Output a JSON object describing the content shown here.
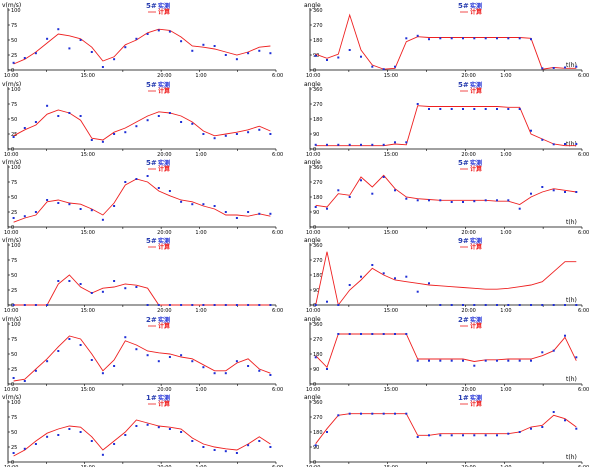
{
  "legend": {
    "measured": "实测",
    "computed": "计算"
  },
  "colors": {
    "measured": "#1f2fd6",
    "computed": "#ee2020",
    "axis": "#000000"
  },
  "chart_data": [
    {
      "type": "line",
      "title": "5#",
      "ylabel": "v(m/s)",
      "xlabel": "",
      "ylim": [
        0,
        100
      ],
      "yticks": [
        0,
        25,
        50,
        75,
        100
      ],
      "x_tick_labels": [
        "10:00",
        "",
        "15:00",
        "",
        "20:00",
        "1:00",
        "",
        "6:00"
      ],
      "series": [
        {
          "name": "计算",
          "values": [
            10,
            18,
            30,
            45,
            60,
            57,
            52,
            38,
            15,
            22,
            42,
            50,
            62,
            68,
            66,
            55,
            40,
            38,
            35,
            30,
            25,
            30,
            38,
            40
          ]
        },
        {
          "name": "实测",
          "values": [
            12,
            20,
            28,
            52,
            68,
            36,
            50,
            30,
            5,
            18,
            38,
            52,
            60,
            66,
            64,
            48,
            32,
            42,
            40,
            25,
            18,
            28,
            32,
            28
          ]
        }
      ]
    },
    {
      "type": "line",
      "title": "5#",
      "ylabel": "angle",
      "xlabel": "t(h)",
      "ylim": [
        0,
        360
      ],
      "yticks": [
        0,
        90,
        180,
        270,
        360
      ],
      "x_tick_labels": [
        "10:00",
        "",
        "15:00",
        "",
        "20:00",
        "1:00",
        "",
        "6:00"
      ],
      "series": [
        {
          "name": "计算",
          "values": [
            95,
            70,
            95,
            330,
            120,
            30,
            5,
            10,
            170,
            200,
            195,
            195,
            195,
            195,
            195,
            195,
            195,
            195,
            195,
            190,
            5,
            15,
            10,
            10
          ]
        },
        {
          "name": "实测",
          "values": [
            85,
            60,
            75,
            120,
            80,
            20,
            5,
            20,
            190,
            205,
            185,
            190,
            190,
            190,
            190,
            190,
            190,
            190,
            190,
            185,
            10,
            12,
            15,
            20
          ]
        }
      ]
    },
    {
      "type": "line",
      "title": "5#",
      "ylabel": "v(m/s)",
      "xlabel": "",
      "ylim": [
        0,
        100
      ],
      "yticks": [
        0,
        25,
        50,
        75,
        100
      ],
      "x_tick_labels": [
        "10:00",
        "",
        "15:00",
        "",
        "20:00",
        "1:00",
        "",
        "6:00"
      ],
      "series": [
        {
          "name": "计算",
          "values": [
            22,
            32,
            40,
            58,
            65,
            60,
            48,
            18,
            15,
            28,
            35,
            45,
            55,
            62,
            60,
            55,
            45,
            30,
            22,
            25,
            28,
            32,
            38,
            30
          ]
        },
        {
          "name": "实测",
          "values": [
            20,
            35,
            45,
            72,
            55,
            60,
            55,
            15,
            12,
            25,
            28,
            38,
            48,
            55,
            60,
            45,
            42,
            25,
            18,
            22,
            25,
            28,
            32,
            25
          ]
        }
      ]
    },
    {
      "type": "line",
      "title": "5#",
      "ylabel": "angle",
      "xlabel": "t(h)",
      "ylim": [
        0,
        360
      ],
      "yticks": [
        0,
        90,
        180,
        270,
        360
      ],
      "x_tick_labels": [
        "10:00",
        "",
        "15:00",
        "",
        "20:00",
        "1:00",
        "",
        "6:00"
      ],
      "series": [
        {
          "name": "计算",
          "values": [
            20,
            20,
            20,
            20,
            20,
            20,
            20,
            30,
            25,
            260,
            255,
            255,
            255,
            255,
            255,
            255,
            255,
            250,
            250,
            90,
            60,
            30,
            20,
            20
          ]
        },
        {
          "name": "实测",
          "values": [
            25,
            25,
            25,
            25,
            25,
            25,
            25,
            40,
            40,
            270,
            240,
            240,
            240,
            240,
            240,
            240,
            240,
            240,
            240,
            110,
            55,
            28,
            30,
            30
          ]
        }
      ]
    },
    {
      "type": "line",
      "title": "5#",
      "ylabel": "v(m/s)",
      "xlabel": "",
      "ylim": [
        0,
        100
      ],
      "yticks": [
        0,
        25,
        50,
        75,
        100
      ],
      "x_tick_labels": [
        "10:00",
        "",
        "15:00",
        "",
        "20:00",
        "1:00",
        "",
        "6:00"
      ],
      "series": [
        {
          "name": "计算",
          "values": [
            8,
            15,
            20,
            42,
            45,
            40,
            38,
            30,
            20,
            40,
            70,
            80,
            75,
            60,
            52,
            45,
            42,
            35,
            30,
            20,
            20,
            18,
            22,
            18
          ]
        },
        {
          "name": "实测",
          "values": [
            15,
            18,
            25,
            45,
            40,
            38,
            30,
            28,
            12,
            35,
            75,
            80,
            85,
            65,
            60,
            42,
            38,
            38,
            35,
            25,
            15,
            25,
            22,
            22
          ]
        }
      ]
    },
    {
      "type": "line",
      "title": "5#",
      "ylabel": "angle",
      "xlabel": "t(h)",
      "ylim": [
        0,
        360
      ],
      "yticks": [
        0,
        90,
        180,
        270,
        360
      ],
      "x_tick_labels": [
        "10:00",
        "",
        "15:00",
        "",
        "20:00",
        "1:00",
        "",
        "6:00"
      ],
      "series": [
        {
          "name": "计算",
          "values": [
            130,
            120,
            200,
            190,
            300,
            240,
            310,
            230,
            180,
            170,
            165,
            160,
            160,
            160,
            160,
            160,
            155,
            155,
            135,
            180,
            210,
            230,
            220,
            210
          ]
        },
        {
          "name": "实测",
          "values": [
            120,
            110,
            220,
            180,
            280,
            200,
            300,
            220,
            170,
            160,
            160,
            160,
            150,
            150,
            155,
            160,
            160,
            160,
            110,
            200,
            240,
            220,
            210,
            210
          ]
        }
      ]
    },
    {
      "type": "line",
      "title": "5#",
      "ylabel": "v(m/s)",
      "xlabel": "",
      "ylim": [
        0,
        100
      ],
      "yticks": [
        0,
        25,
        50,
        75,
        100
      ],
      "x_tick_labels": [
        "10:00",
        "",
        "15:00",
        "",
        "20:00",
        "1:00",
        "",
        "6:00"
      ],
      "series": [
        {
          "name": "计算",
          "values": [
            0,
            0,
            0,
            0,
            35,
            50,
            30,
            20,
            28,
            30,
            35,
            33,
            28,
            0,
            0,
            0,
            0,
            0,
            0,
            0,
            0,
            0,
            0,
            0
          ]
        },
        {
          "name": "实测",
          "values": [
            0,
            0,
            0,
            0,
            40,
            40,
            35,
            20,
            22,
            40,
            28,
            30,
            0,
            0,
            0,
            0,
            0,
            0,
            0,
            0,
            0,
            0,
            0,
            0
          ]
        }
      ]
    },
    {
      "type": "line",
      "title": "9#",
      "ylabel": "angle",
      "xlabel": "t(h)",
      "ylim": [
        0,
        360
      ],
      "yticks": [
        0,
        90,
        180,
        270,
        360
      ],
      "x_tick_labels": [
        "10:00",
        "",
        "15:00",
        "",
        "20:00",
        "1:00",
        "",
        "6:00"
      ],
      "series": [
        {
          "name": "计算",
          "values": [
            0,
            320,
            0,
            90,
            150,
            220,
            180,
            150,
            140,
            130,
            120,
            115,
            110,
            105,
            100,
            95,
            95,
            100,
            110,
            120,
            140,
            200,
            260,
            260
          ]
        },
        {
          "name": "实测",
          "values": [
            0,
            20,
            0,
            120,
            170,
            240,
            190,
            160,
            170,
            80,
            130,
            0,
            0,
            0,
            0,
            0,
            0,
            0,
            0,
            0,
            0,
            0,
            0,
            0
          ]
        }
      ]
    },
    {
      "type": "line",
      "title": "2#",
      "ylabel": "v(m/s)",
      "xlabel": "",
      "ylim": [
        0,
        100
      ],
      "yticks": [
        0,
        25,
        50,
        75,
        100
      ],
      "x_tick_labels": [
        "10:00",
        "",
        "15:00",
        "",
        "20:00",
        "1:00",
        "",
        "6:00"
      ],
      "series": [
        {
          "name": "计算",
          "values": [
            5,
            8,
            25,
            42,
            62,
            80,
            75,
            50,
            22,
            40,
            72,
            65,
            55,
            52,
            50,
            45,
            42,
            32,
            22,
            22,
            35,
            42,
            25,
            18
          ]
        },
        {
          "name": "实测",
          "values": [
            10,
            5,
            22,
            38,
            55,
            75,
            65,
            40,
            18,
            30,
            78,
            58,
            48,
            38,
            45,
            48,
            38,
            28,
            18,
            18,
            38,
            30,
            22,
            15
          ]
        }
      ]
    },
    {
      "type": "line",
      "title": "2#",
      "ylabel": "angle",
      "xlabel": "t(h)",
      "ylim": [
        0,
        360
      ],
      "yticks": [
        0,
        90,
        180,
        270,
        360
      ],
      "x_tick_labels": [
        "10:00",
        "",
        "15:00",
        "",
        "20:00",
        "1:00",
        "",
        "6:00"
      ],
      "series": [
        {
          "name": "计算",
          "values": [
            170,
            100,
            300,
            300,
            300,
            300,
            300,
            300,
            300,
            150,
            150,
            150,
            150,
            150,
            135,
            145,
            145,
            150,
            150,
            150,
            170,
            200,
            280,
            140
          ]
        },
        {
          "name": "实测",
          "values": [
            160,
            90,
            300,
            300,
            300,
            300,
            300,
            300,
            300,
            140,
            140,
            140,
            140,
            140,
            110,
            140,
            140,
            140,
            140,
            140,
            190,
            200,
            290,
            160
          ]
        }
      ]
    },
    {
      "type": "line",
      "title": "1#",
      "ylabel": "v(m/s)",
      "xlabel": "",
      "ylim": [
        0,
        100
      ],
      "yticks": [
        0,
        25,
        50,
        75,
        100
      ],
      "x_tick_labels": [
        "10:00",
        "",
        "15:00",
        "",
        "20:00",
        "1:00",
        "",
        "6:00"
      ],
      "series": [
        {
          "name": "计算",
          "values": [
            10,
            20,
            35,
            48,
            55,
            60,
            58,
            42,
            20,
            35,
            50,
            70,
            65,
            60,
            58,
            55,
            40,
            30,
            25,
            22,
            20,
            30,
            42,
            30
          ]
        },
        {
          "name": "实测",
          "values": [
            15,
            22,
            30,
            42,
            45,
            55,
            50,
            35,
            12,
            30,
            45,
            60,
            62,
            58,
            55,
            50,
            35,
            25,
            20,
            18,
            15,
            28,
            35,
            25
          ]
        }
      ]
    },
    {
      "type": "line",
      "title": "1#",
      "ylabel": "angle",
      "xlabel": "t(h)",
      "ylim": [
        0,
        360
      ],
      "yticks": [
        0,
        90,
        180,
        270,
        360
      ],
      "x_tick_labels": [
        "10:00",
        "",
        "15:00",
        "",
        "20:00",
        "1:00",
        "",
        "6:00"
      ],
      "series": [
        {
          "name": "计算",
          "values": [
            110,
            200,
            280,
            290,
            290,
            290,
            290,
            290,
            290,
            160,
            160,
            170,
            170,
            170,
            170,
            170,
            170,
            170,
            180,
            210,
            220,
            280,
            260,
            210
          ]
        },
        {
          "name": "实测",
          "values": [
            100,
            180,
            280,
            290,
            290,
            290,
            290,
            290,
            290,
            150,
            160,
            160,
            160,
            160,
            160,
            160,
            160,
            170,
            180,
            200,
            210,
            300,
            250,
            200
          ]
        }
      ]
    }
  ]
}
